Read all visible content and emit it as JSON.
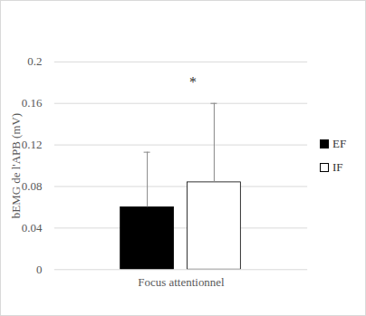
{
  "chart_data": {
    "type": "bar",
    "categories": [
      "Focus attentionnel"
    ],
    "series": [
      {
        "name": "EF",
        "color": "#000000",
        "values": [
          0.06
        ],
        "errors": [
          0.053
        ]
      },
      {
        "name": "IF",
        "color": "#ffffff",
        "values": [
          0.084
        ],
        "errors": [
          0.076
        ]
      }
    ],
    "ylabel": "bEMG de l'APB (mV)",
    "ylim": [
      0,
      0.2
    ],
    "yticks": [
      0,
      0.04,
      0.08,
      0.12,
      0.16,
      0.2
    ],
    "grid": true,
    "legend": "right",
    "annotations": [
      "*"
    ]
  }
}
